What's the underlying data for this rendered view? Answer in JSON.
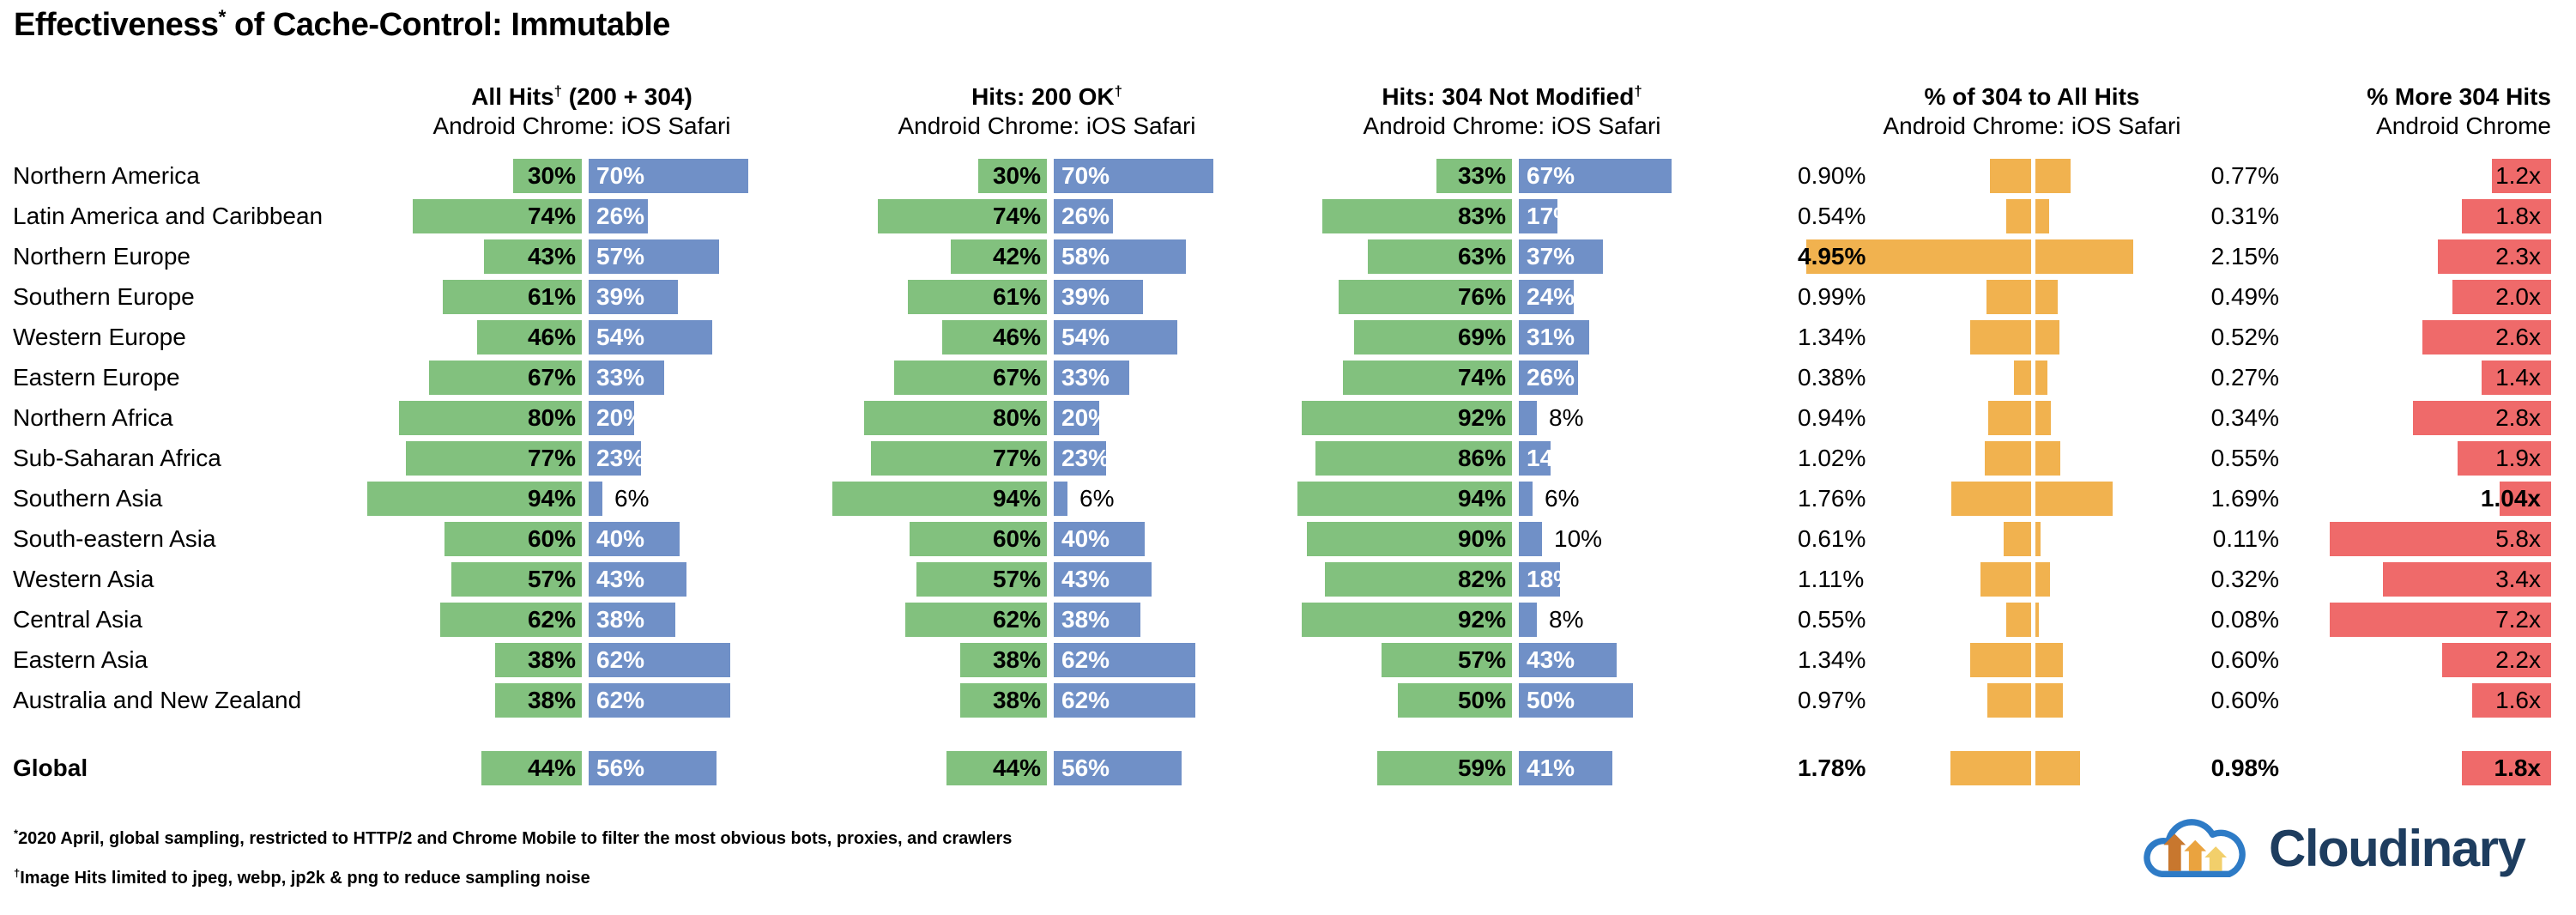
{
  "title": {
    "main": "Effectiveness",
    "sup": "*",
    "tail": " of Cache-Control: Immutable"
  },
  "columns": [
    {
      "title": "All Hits",
      "sup": "†",
      "tail": " (200 + 304)",
      "subtitle": "Android Chrome: iOS Safari"
    },
    {
      "title": "Hits: 200 OK",
      "sup": "†",
      "subtitle": "Android Chrome: iOS Safari"
    },
    {
      "title": "Hits: 304 Not Modified",
      "sup": "†",
      "subtitle": "Android Chrome: iOS Safari"
    },
    {
      "title": "% of 304 to All Hits",
      "subtitle": "Android Chrome: iOS Safari"
    },
    {
      "title": "% More 304 Hits",
      "subtitle": "Android Chrome"
    }
  ],
  "colors": {
    "android_green": "#82C17E",
    "ios_blue": "#7090C7",
    "pct_orange": "#F1B24F",
    "more_red": "#EF6A6A",
    "logo_navy": "#1E3D5F",
    "logo_cloud_blue": "#2E7BC6",
    "logo_arrow_dark": "#C8772E",
    "logo_arrow_mid": "#EAA33F",
    "logo_arrow_light": "#F2CF6B"
  },
  "rows": [
    {
      "region": "Northern America",
      "all_hits": [
        30,
        70
      ],
      "hits_200": [
        30,
        70
      ],
      "hits_304": [
        33,
        67
      ],
      "pct_304": {
        "v": [
          0.9,
          0.77
        ],
        "labels": [
          "0.90%",
          "0.77%"
        ],
        "bold": [
          false,
          false
        ]
      },
      "more_304": {
        "v": 1.2,
        "label": "1.2x",
        "bold": false
      }
    },
    {
      "region": "Latin America and Caribbean",
      "all_hits": [
        74,
        26
      ],
      "hits_200": [
        74,
        26
      ],
      "hits_304": [
        83,
        17
      ],
      "pct_304": {
        "v": [
          0.54,
          0.31
        ],
        "labels": [
          "0.54%",
          "0.31%"
        ],
        "bold": [
          false,
          false
        ]
      },
      "more_304": {
        "v": 1.8,
        "label": "1.8x",
        "bold": false
      }
    },
    {
      "region": "Northern Europe",
      "all_hits": [
        43,
        57
      ],
      "hits_200": [
        42,
        58
      ],
      "hits_304": [
        63,
        37
      ],
      "pct_304": {
        "v": [
          4.95,
          2.15
        ],
        "labels": [
          "4.95%",
          "2.15%"
        ],
        "bold": [
          true,
          false
        ]
      },
      "more_304": {
        "v": 2.3,
        "label": "2.3x",
        "bold": false
      }
    },
    {
      "region": "Southern Europe",
      "all_hits": [
        61,
        39
      ],
      "hits_200": [
        61,
        39
      ],
      "hits_304": [
        76,
        24
      ],
      "pct_304": {
        "v": [
          0.99,
          0.49
        ],
        "labels": [
          "0.99%",
          "0.49%"
        ],
        "bold": [
          false,
          false
        ]
      },
      "more_304": {
        "v": 2.0,
        "label": "2.0x",
        "bold": false
      }
    },
    {
      "region": "Western Europe",
      "all_hits": [
        46,
        54
      ],
      "hits_200": [
        46,
        54
      ],
      "hits_304": [
        69,
        31
      ],
      "pct_304": {
        "v": [
          1.34,
          0.52
        ],
        "labels": [
          "1.34%",
          "0.52%"
        ],
        "bold": [
          false,
          false
        ]
      },
      "more_304": {
        "v": 2.6,
        "label": "2.6x",
        "bold": false
      }
    },
    {
      "region": "Eastern Europe",
      "all_hits": [
        67,
        33
      ],
      "hits_200": [
        67,
        33
      ],
      "hits_304": [
        74,
        26
      ],
      "pct_304": {
        "v": [
          0.38,
          0.27
        ],
        "labels": [
          "0.38%",
          "0.27%"
        ],
        "bold": [
          false,
          false
        ]
      },
      "more_304": {
        "v": 1.4,
        "label": "1.4x",
        "bold": false
      }
    },
    {
      "region": "Northern Africa",
      "all_hits": [
        80,
        20
      ],
      "hits_200": [
        80,
        20
      ],
      "hits_304": [
        92,
        8
      ],
      "pct_304": {
        "v": [
          0.94,
          0.34
        ],
        "labels": [
          "0.94%",
          "0.34%"
        ],
        "bold": [
          false,
          false
        ]
      },
      "more_304": {
        "v": 2.8,
        "label": "2.8x",
        "bold": false
      }
    },
    {
      "region": "Sub-Saharan Africa",
      "all_hits": [
        77,
        23
      ],
      "hits_200": [
        77,
        23
      ],
      "hits_304": [
        86,
        14
      ],
      "pct_304": {
        "v": [
          1.02,
          0.55
        ],
        "labels": [
          "1.02%",
          "0.55%"
        ],
        "bold": [
          false,
          false
        ]
      },
      "more_304": {
        "v": 1.9,
        "label": "1.9x",
        "bold": false
      }
    },
    {
      "region": "Southern Asia",
      "all_hits": [
        94,
        6
      ],
      "hits_200": [
        94,
        6
      ],
      "hits_304": [
        94,
        6
      ],
      "pct_304": {
        "v": [
          1.76,
          1.69
        ],
        "labels": [
          "1.76%",
          "1.69%"
        ],
        "bold": [
          false,
          false
        ]
      },
      "more_304": {
        "v": 1.04,
        "label": "1.04x",
        "bold": true
      }
    },
    {
      "region": "South-eastern Asia",
      "all_hits": [
        60,
        40
      ],
      "hits_200": [
        60,
        40
      ],
      "hits_304": [
        90,
        10
      ],
      "pct_304": {
        "v": [
          0.61,
          0.11
        ],
        "labels": [
          "0.61%",
          "0.11%"
        ],
        "bold": [
          false,
          false
        ]
      },
      "more_304": {
        "v": 5.8,
        "label": "5.8x",
        "bold": false
      }
    },
    {
      "region": "Western Asia",
      "all_hits": [
        57,
        43
      ],
      "hits_200": [
        57,
        43
      ],
      "hits_304": [
        82,
        18
      ],
      "pct_304": {
        "v": [
          1.11,
          0.32
        ],
        "labels": [
          "1.11%",
          "0.32%"
        ],
        "bold": [
          false,
          false
        ]
      },
      "more_304": {
        "v": 3.4,
        "label": "3.4x",
        "bold": false
      }
    },
    {
      "region": "Central Asia",
      "all_hits": [
        62,
        38
      ],
      "hits_200": [
        62,
        38
      ],
      "hits_304": [
        92,
        8
      ],
      "pct_304": {
        "v": [
          0.55,
          0.08
        ],
        "labels": [
          "0.55%",
          "0.08%"
        ],
        "bold": [
          false,
          false
        ]
      },
      "more_304": {
        "v": 7.2,
        "label": "7.2x",
        "bold": false
      }
    },
    {
      "region": "Eastern Asia",
      "all_hits": [
        38,
        62
      ],
      "hits_200": [
        38,
        62
      ],
      "hits_304": [
        57,
        43
      ],
      "pct_304": {
        "v": [
          1.34,
          0.6
        ],
        "labels": [
          "1.34%",
          "0.60%"
        ],
        "bold": [
          false,
          false
        ]
      },
      "more_304": {
        "v": 2.2,
        "label": "2.2x",
        "bold": false
      }
    },
    {
      "region": "Australia and New Zealand",
      "all_hits": [
        38,
        62
      ],
      "hits_200": [
        38,
        62
      ],
      "hits_304": [
        50,
        50
      ],
      "pct_304": {
        "v": [
          0.97,
          0.6
        ],
        "labels": [
          "0.97%",
          "0.60%"
        ],
        "bold": [
          false,
          false
        ]
      },
      "more_304": {
        "v": 1.6,
        "label": "1.6x",
        "bold": false
      }
    },
    {
      "region": "Global",
      "bold": true,
      "all_hits": [
        44,
        56
      ],
      "hits_200": [
        44,
        56
      ],
      "hits_304": [
        59,
        41
      ],
      "pct_304": {
        "v": [
          1.78,
          0.98
        ],
        "labels": [
          "1.78%",
          "0.98%"
        ],
        "bold": [
          true,
          true
        ]
      },
      "more_304": {
        "v": 1.8,
        "label": "1.8x",
        "bold": true
      }
    }
  ],
  "footnotes": [
    {
      "sup": "*",
      "text": "2020 April, global sampling, restricted to HTTP/2 and Chrome Mobile to filter the most obvious bots, proxies, and crawlers"
    },
    {
      "sup": "†",
      "text": "Image Hits limited to jpeg, webp, jp2k & png to reduce sampling noise"
    }
  ],
  "logo": {
    "text": "Cloudinary"
  },
  "chart_data": {
    "type": "bar",
    "title": "Effectiveness of Cache-Control: Immutable",
    "categories": [
      "Northern America",
      "Latin America and Caribbean",
      "Northern Europe",
      "Southern Europe",
      "Western Europe",
      "Eastern Europe",
      "Northern Africa",
      "Sub-Saharan Africa",
      "Southern Asia",
      "South-eastern Asia",
      "Western Asia",
      "Central Asia",
      "Eastern Asia",
      "Australia and New Zealand",
      "Global"
    ],
    "groups": [
      {
        "name": "All Hits (200 + 304)",
        "kind": "stacked-percent",
        "series": [
          {
            "name": "Android Chrome",
            "values": [
              30,
              74,
              43,
              61,
              46,
              67,
              80,
              77,
              94,
              60,
              57,
              62,
              38,
              38,
              44
            ]
          },
          {
            "name": "iOS Safari",
            "values": [
              70,
              26,
              57,
              39,
              54,
              33,
              20,
              23,
              6,
              40,
              43,
              38,
              62,
              62,
              56
            ]
          }
        ]
      },
      {
        "name": "Hits: 200 OK",
        "kind": "stacked-percent",
        "series": [
          {
            "name": "Android Chrome",
            "values": [
              30,
              74,
              42,
              61,
              46,
              67,
              80,
              77,
              94,
              60,
              57,
              62,
              38,
              38,
              44
            ]
          },
          {
            "name": "iOS Safari",
            "values": [
              70,
              26,
              58,
              39,
              54,
              33,
              20,
              23,
              6,
              40,
              43,
              38,
              62,
              62,
              56
            ]
          }
        ]
      },
      {
        "name": "Hits: 304 Not Modified",
        "kind": "stacked-percent",
        "series": [
          {
            "name": "Android Chrome",
            "values": [
              33,
              83,
              63,
              76,
              69,
              74,
              92,
              86,
              94,
              90,
              82,
              92,
              57,
              50,
              59
            ]
          },
          {
            "name": "iOS Safari",
            "values": [
              67,
              17,
              37,
              24,
              31,
              26,
              8,
              14,
              6,
              10,
              18,
              8,
              43,
              50,
              41
            ]
          }
        ]
      },
      {
        "name": "% of 304 to All Hits",
        "kind": "paired-bars",
        "series": [
          {
            "name": "Android Chrome",
            "values": [
              0.9,
              0.54,
              4.95,
              0.99,
              1.34,
              0.38,
              0.94,
              1.02,
              1.76,
              0.61,
              1.11,
              0.55,
              1.34,
              0.97,
              1.78
            ]
          },
          {
            "name": "iOS Safari",
            "values": [
              0.77,
              0.31,
              2.15,
              0.49,
              0.52,
              0.27,
              0.34,
              0.55,
              1.69,
              0.11,
              0.32,
              0.08,
              0.6,
              0.6,
              0.98
            ]
          }
        ]
      },
      {
        "name": "% More 304 Hits",
        "kind": "single-bars",
        "series": [
          {
            "name": "Android Chrome",
            "values": [
              1.2,
              1.8,
              2.3,
              2.0,
              2.6,
              1.4,
              2.8,
              1.9,
              1.04,
              5.8,
              3.4,
              7.2,
              2.2,
              1.6,
              1.8
            ]
          }
        ]
      }
    ],
    "legend_position": "none",
    "grid": false
  }
}
